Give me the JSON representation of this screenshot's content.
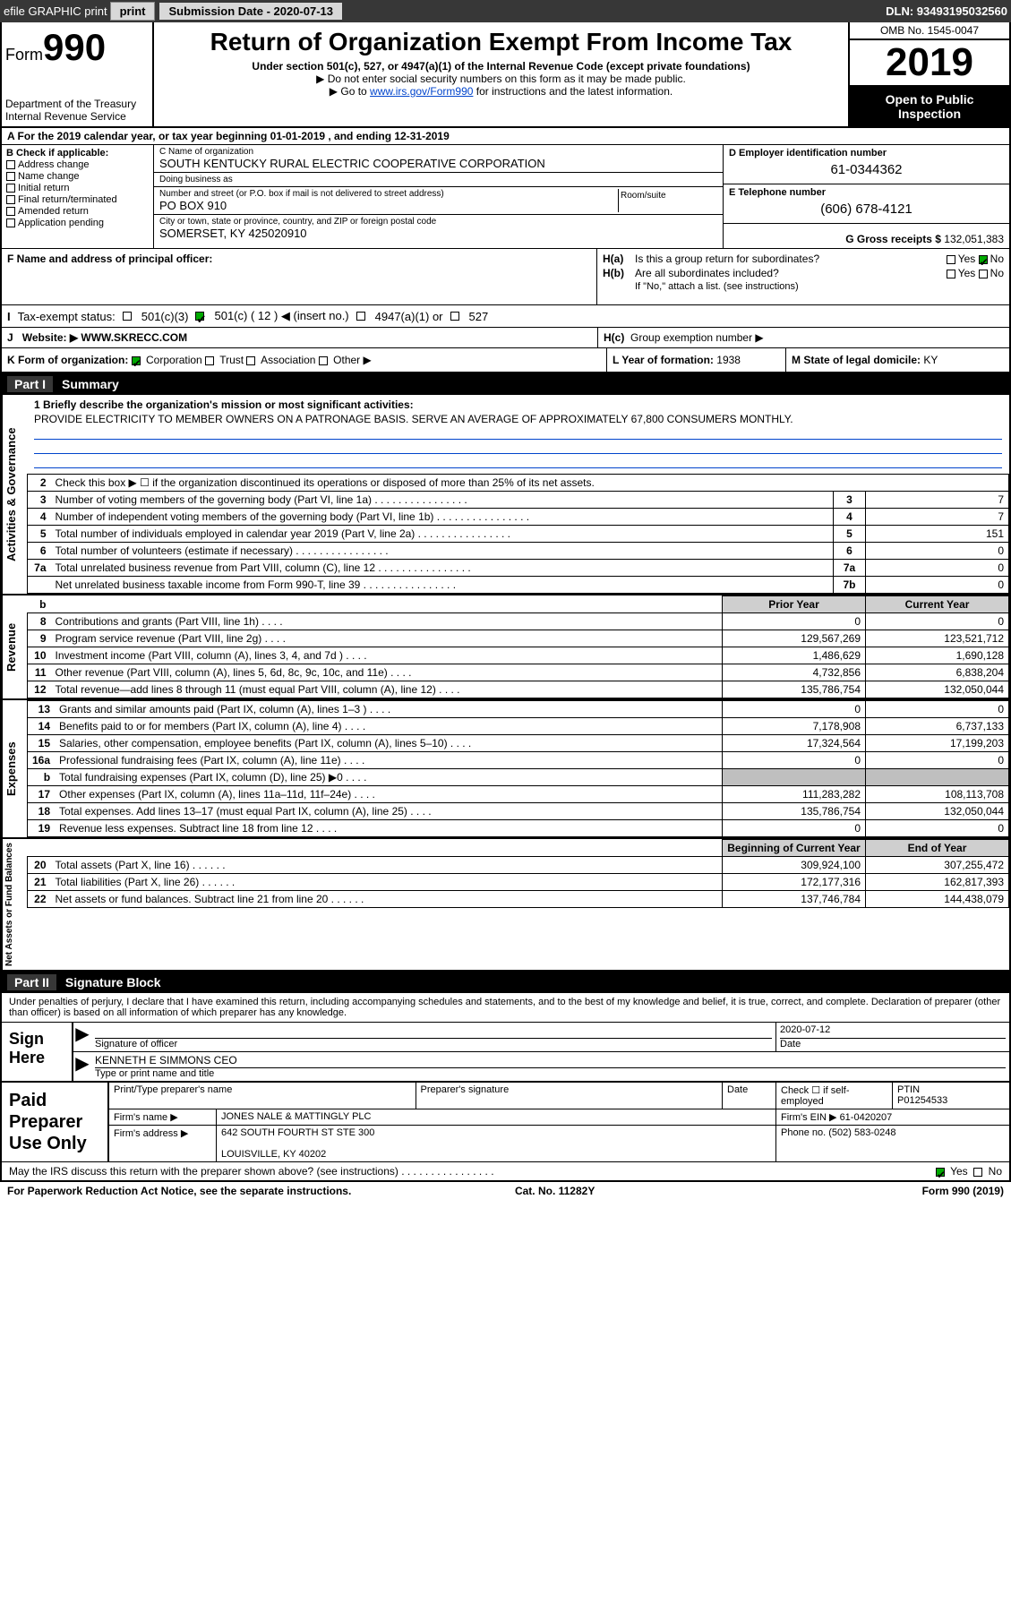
{
  "topbar": {
    "efile": "efile GRAPHIC print",
    "subdate_lbl": "Submission Date - 2020-07-13",
    "dln": "DLN: 93493195032560"
  },
  "hdr": {
    "form_small": "Form",
    "form_big": "990",
    "dept": "Department of the Treasury\nInternal Revenue Service",
    "title": "Return of Organization Exempt From Income Tax",
    "sub1": "Under section 501(c), 527, or 4947(a)(1) of the Internal Revenue Code (except private foundations)",
    "sub2": "▶ Do not enter social security numbers on this form as it may be made public.",
    "sub3_pre": "▶ Go to ",
    "sub3_link": "www.irs.gov/Form990",
    "sub3_post": " for instructions and the latest information.",
    "omb": "OMB No. 1545-0047",
    "year": "2019",
    "opi": "Open to Public Inspection"
  },
  "rowA": "A  For the 2019 calendar year, or tax year beginning 01-01-2019    , and ending 12-31-2019",
  "B": {
    "hdr": "B Check if applicable:",
    "items": [
      "Address change",
      "Name change",
      "Initial return",
      "Final return/terminated",
      "Amended return",
      "Application pending"
    ]
  },
  "C": {
    "name_lbl": "C Name of organization",
    "name": "SOUTH KENTUCKY RURAL ELECTRIC COOPERATIVE CORPORATION",
    "dba_lbl": "Doing business as",
    "dba": "",
    "addr_lbl": "Number and street (or P.O. box if mail is not delivered to street address)",
    "room_lbl": "Room/suite",
    "addr": "PO BOX 910",
    "city_lbl": "City or town, state or province, country, and ZIP or foreign postal code",
    "city": "SOMERSET, KY  425020910"
  },
  "D": {
    "lbl": "D Employer identification number",
    "val": "61-0344362"
  },
  "E": {
    "lbl": "E Telephone number",
    "val": "(606) 678-4121"
  },
  "G": {
    "lbl": "G Gross receipts $",
    "val": "132,051,383"
  },
  "F": {
    "lbl": "F  Name and address of principal officer:",
    "val": ""
  },
  "H": {
    "a": "Is this a group return for subordinates?",
    "a_yes": "Yes",
    "a_no": "No",
    "b": "Are all subordinates included?",
    "b_yes": "Yes",
    "b_no": "No",
    "b_note": "If \"No,\" attach a list. (see instructions)",
    "c": "Group exemption number ▶"
  },
  "I": {
    "lbl": "Tax-exempt status:",
    "c3": "501(c)(3)",
    "c": "501(c) ( 12 ) ◀ (insert no.)",
    "a1": "4947(a)(1) or",
    "s527": "527"
  },
  "J": {
    "lbl": "J",
    "web_lbl": "Website: ▶",
    "web": "WWW.SKRECC.COM"
  },
  "K": {
    "lbl": "K Form of organization:",
    "corp": "Corporation",
    "trust": "Trust",
    "assoc": "Association",
    "other": "Other ▶"
  },
  "L": {
    "lbl": "L Year of formation:",
    "val": "1938"
  },
  "M": {
    "lbl": "M State of legal domicile:",
    "val": "KY"
  },
  "part1": {
    "hdr_part": "Part I",
    "hdr_title": "Summary"
  },
  "tabs": {
    "ag": "Activities & Governance",
    "rev": "Revenue",
    "exp": "Expenses",
    "na": "Net Assets or Fund Balances"
  },
  "q1": {
    "lbl": "1  Briefly describe the organization's mission or most significant activities:",
    "txt": "PROVIDE ELECTRICITY TO MEMBER OWNERS ON A PATRONAGE BASIS. SERVE AN AVERAGE OF APPROXIMATELY 67,800 CONSUMERS MONTHLY."
  },
  "ag_rows": [
    {
      "n": "2",
      "d": "Check this box ▶ ☐  if the organization discontinued its operations or disposed of more than 25% of its net assets.",
      "box": "",
      "v": ""
    },
    {
      "n": "3",
      "d": "Number of voting members of the governing body (Part VI, line 1a)",
      "box": "3",
      "v": "7"
    },
    {
      "n": "4",
      "d": "Number of independent voting members of the governing body (Part VI, line 1b)",
      "box": "4",
      "v": "7"
    },
    {
      "n": "5",
      "d": "Total number of individuals employed in calendar year 2019 (Part V, line 2a)",
      "box": "5",
      "v": "151"
    },
    {
      "n": "6",
      "d": "Total number of volunteers (estimate if necessary)",
      "box": "6",
      "v": "0"
    },
    {
      "n": "7a",
      "d": "Total unrelated business revenue from Part VIII, column (C), line 12",
      "box": "7a",
      "v": "0"
    },
    {
      "n": "",
      "d": "Net unrelated business taxable income from Form 990-T, line 39",
      "box": "7b",
      "v": "0"
    }
  ],
  "py_hdr": "Prior Year",
  "cy_hdr": "Current Year",
  "rev_rows": [
    {
      "n": "8",
      "d": "Contributions and grants (Part VIII, line 1h)",
      "py": "0",
      "cy": "0"
    },
    {
      "n": "9",
      "d": "Program service revenue (Part VIII, line 2g)",
      "py": "129,567,269",
      "cy": "123,521,712"
    },
    {
      "n": "10",
      "d": "Investment income (Part VIII, column (A), lines 3, 4, and 7d )",
      "py": "1,486,629",
      "cy": "1,690,128"
    },
    {
      "n": "11",
      "d": "Other revenue (Part VIII, column (A), lines 5, 6d, 8c, 9c, 10c, and 11e)",
      "py": "4,732,856",
      "cy": "6,838,204"
    },
    {
      "n": "12",
      "d": "Total revenue—add lines 8 through 11 (must equal Part VIII, column (A), line 12)",
      "py": "135,786,754",
      "cy": "132,050,044"
    }
  ],
  "exp_rows": [
    {
      "n": "13",
      "d": "Grants and similar amounts paid (Part IX, column (A), lines 1–3 )",
      "py": "0",
      "cy": "0"
    },
    {
      "n": "14",
      "d": "Benefits paid to or for members (Part IX, column (A), line 4)",
      "py": "7,178,908",
      "cy": "6,737,133"
    },
    {
      "n": "15",
      "d": "Salaries, other compensation, employee benefits (Part IX, column (A), lines 5–10)",
      "py": "17,324,564",
      "cy": "17,199,203"
    },
    {
      "n": "16a",
      "d": "Professional fundraising fees (Part IX, column (A), line 11e)",
      "py": "0",
      "cy": "0"
    },
    {
      "n": "b",
      "d": "Total fundraising expenses (Part IX, column (D), line 25) ▶0",
      "py": "",
      "cy": "",
      "shade": true
    },
    {
      "n": "17",
      "d": "Other expenses (Part IX, column (A), lines 11a–11d, 11f–24e)",
      "py": "111,283,282",
      "cy": "108,113,708"
    },
    {
      "n": "18",
      "d": "Total expenses. Add lines 13–17 (must equal Part IX, column (A), line 25)",
      "py": "135,786,754",
      "cy": "132,050,044"
    },
    {
      "n": "19",
      "d": "Revenue less expenses. Subtract line 18 from line 12",
      "py": "0",
      "cy": "0"
    }
  ],
  "bcy_hdr": "Beginning of Current Year",
  "eoy_hdr": "End of Year",
  "na_rows": [
    {
      "n": "20",
      "d": "Total assets (Part X, line 16)",
      "py": "309,924,100",
      "cy": "307,255,472"
    },
    {
      "n": "21",
      "d": "Total liabilities (Part X, line 26)",
      "py": "172,177,316",
      "cy": "162,817,393"
    },
    {
      "n": "22",
      "d": "Net assets or fund balances. Subtract line 21 from line 20",
      "py": "137,746,784",
      "cy": "144,438,079"
    }
  ],
  "part2": {
    "hdr_part": "Part II",
    "hdr_title": "Signature Block"
  },
  "sig": {
    "pre": "Under penalties of perjury, I declare that I have examined this return, including accompanying schedules and statements, and to the best of my knowledge and belief, it is true, correct, and complete. Declaration of preparer (other than officer) is based on all information of which preparer has any knowledge.",
    "sign_here": "Sign Here",
    "sig_off_lbl": "Signature of officer",
    "date_lbl": "Date",
    "date": "2020-07-12",
    "name": "KENNETH E SIMMONS CEO",
    "name_lbl": "Type or print name and title"
  },
  "paid": {
    "lbl": "Paid Preparer Use Only",
    "h1": "Print/Type preparer's name",
    "h2": "Preparer's signature",
    "h3": "Date",
    "h4": "Check ☐ if self-employed",
    "h5": "PTIN",
    "ptin": "P01254533",
    "firm_lbl": "Firm's name    ▶",
    "firm": "JONES NALE & MATTINGLY PLC",
    "ein_lbl": "Firm's EIN ▶",
    "ein": "61-0420207",
    "addr_lbl": "Firm's address ▶",
    "addr1": "642 SOUTH FOURTH ST STE 300",
    "addr2": "LOUISVILLE, KY  40202",
    "phone_lbl": "Phone no.",
    "phone": "(502) 583-0248"
  },
  "discuss": {
    "txt": "May the IRS discuss this return with the preparer shown above? (see instructions)",
    "yes": "Yes",
    "no": "No"
  },
  "footer": {
    "l": "For Paperwork Reduction Act Notice, see the separate instructions.",
    "m": "Cat. No. 11282Y",
    "r": "Form 990 (2019)"
  }
}
